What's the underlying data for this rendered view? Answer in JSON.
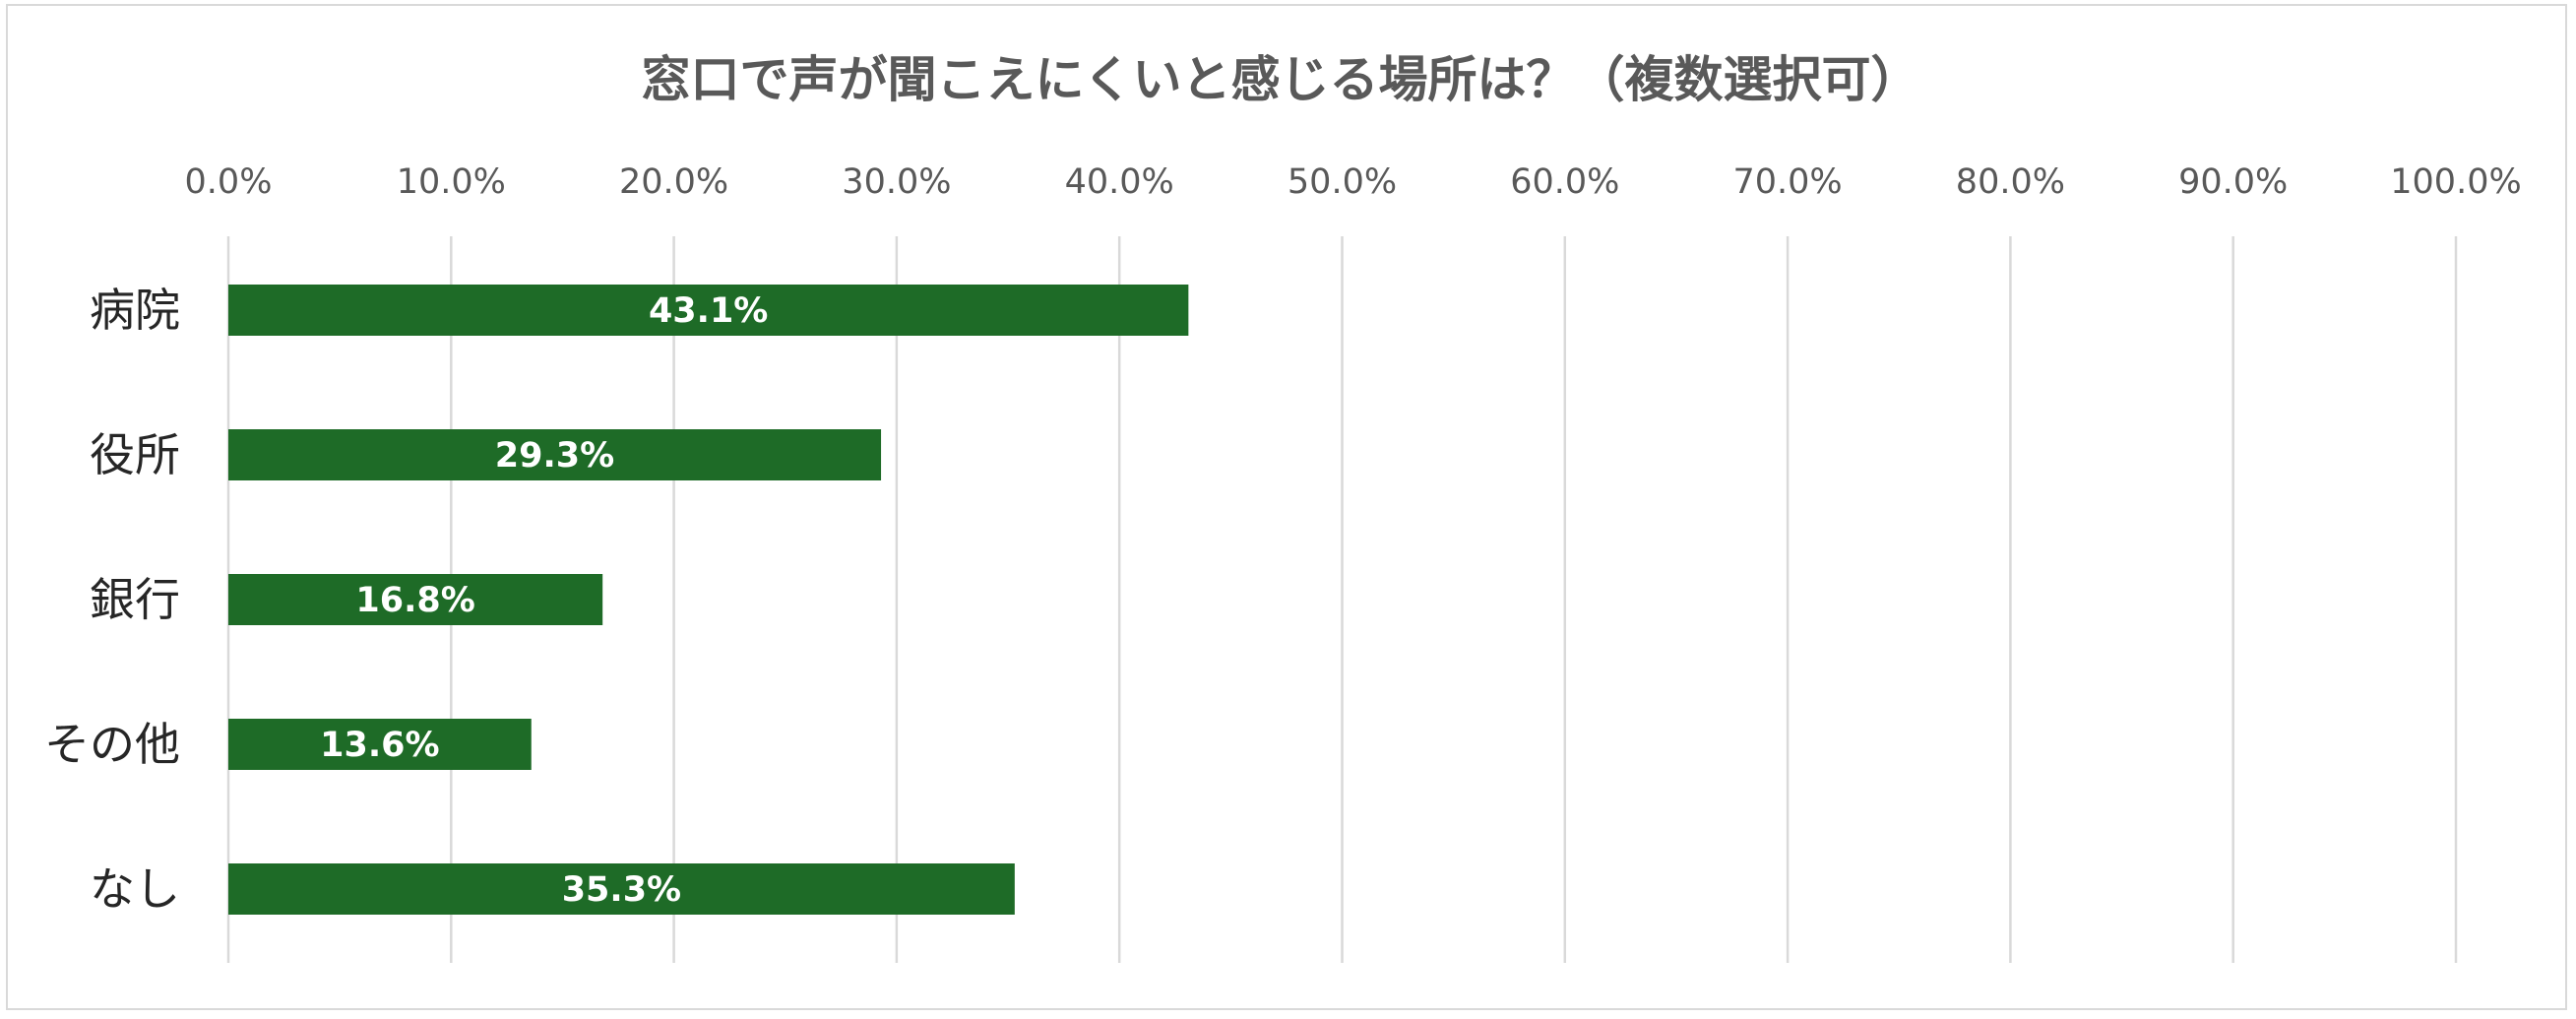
{
  "chart_data": {
    "type": "bar",
    "orientation": "horizontal",
    "title": "窓口で声が聞こえにくいと感じる場所は？（複数選択可）",
    "categories": [
      "病院",
      "役所",
      "銀行",
      "その他",
      "なし"
    ],
    "values": [
      43.1,
      29.3,
      16.8,
      13.6,
      35.3
    ],
    "data_labels": [
      "43.1%",
      "29.3%",
      "16.8%",
      "13.6%",
      "35.3%"
    ],
    "xlim": [
      0,
      100
    ],
    "x_ticks": [
      "0.0%",
      "10.0%",
      "20.0%",
      "30.0%",
      "40.0%",
      "50.0%",
      "60.0%",
      "70.0%",
      "80.0%",
      "90.0%",
      "100.0%"
    ],
    "x_axis_position": "top",
    "grid": true,
    "legend": "none",
    "bar_color": "#1e6b27",
    "grid_color": "#d9d9d9"
  }
}
